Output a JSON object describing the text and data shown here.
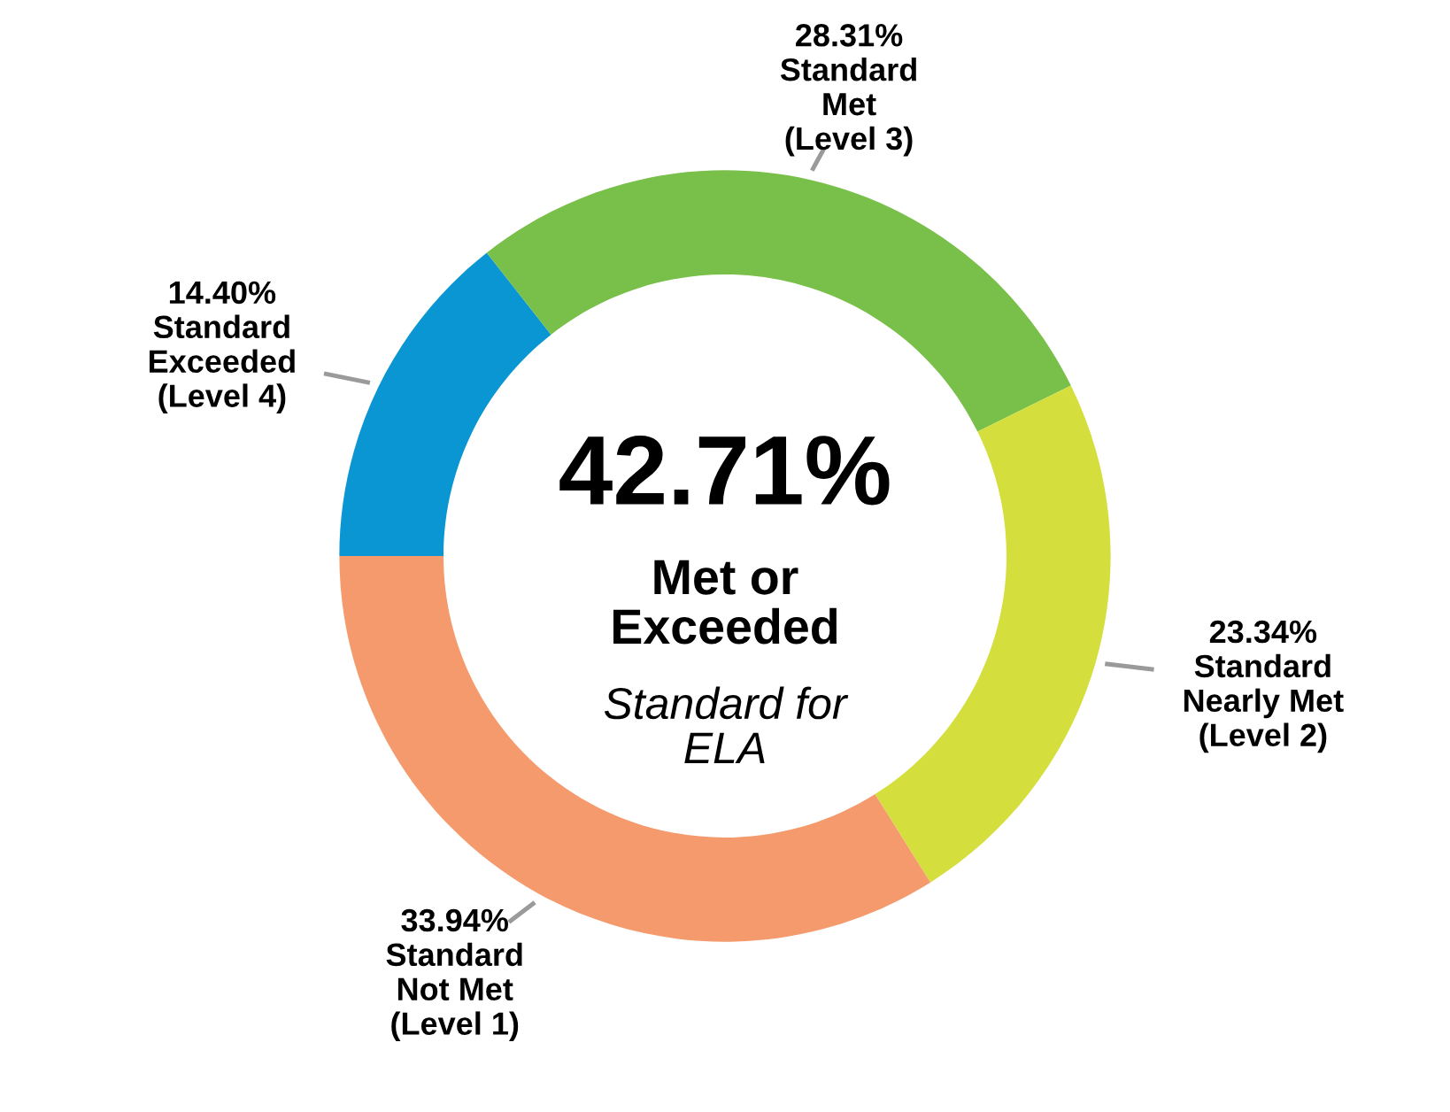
{
  "chart_data": {
    "type": "donut",
    "categories": [
      "Standard\nExceeded\n(Level 4)",
      "Standard\nMet\n(Level 3)",
      "Standard\nNearly Met\n(Level 2)",
      "Standard\nNot Met\n(Level 1)"
    ],
    "values": [
      14.4,
      28.31,
      23.34,
      33.94
    ],
    "value_labels": [
      "14.40%",
      "28.31%",
      "23.34%",
      "33.94%"
    ],
    "colors": [
      "#0a96d2",
      "#78c04a",
      "#d4df3e",
      "#f59a6c"
    ],
    "annotations": [
      "42.71%",
      "Met or\nExceeded",
      "Standard for\nELA"
    ],
    "legend": false
  }
}
